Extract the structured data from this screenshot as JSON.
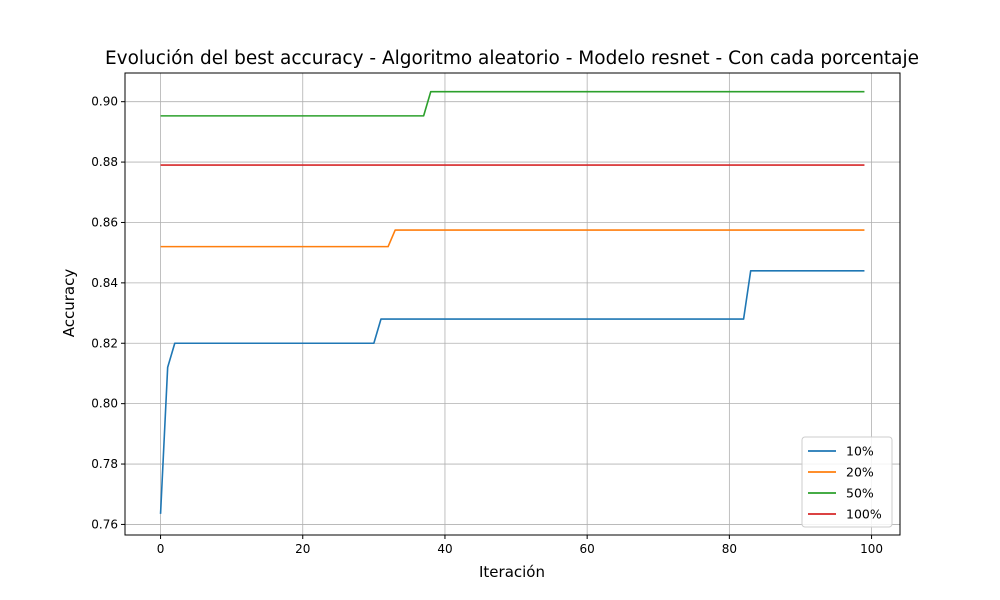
{
  "chart_data": {
    "type": "line",
    "title": "Evolución del best accuracy - Algoritmo aleatorio - Modelo resnet - Con cada porcentaje",
    "xlabel": "Iteración",
    "ylabel": "Accuracy",
    "xlim": [
      -5,
      104
    ],
    "ylim": [
      0.7565,
      0.9095
    ],
    "xticks": [
      0,
      20,
      40,
      60,
      80,
      100
    ],
    "yticks": [
      0.76,
      0.78,
      0.8,
      0.82,
      0.84,
      0.86,
      0.88,
      0.9
    ],
    "ytick_labels": [
      "0.76",
      "0.78",
      "0.80",
      "0.82",
      "0.84",
      "0.86",
      "0.88",
      "0.90"
    ],
    "grid": true,
    "legend_position": "lower-right",
    "series": [
      {
        "name": "10%",
        "color": "#1f77b4",
        "points": [
          [
            0,
            0.7635
          ],
          [
            1,
            0.812
          ],
          [
            2,
            0.82
          ],
          [
            30,
            0.82
          ],
          [
            31,
            0.828
          ],
          [
            82,
            0.828
          ],
          [
            83,
            0.844
          ],
          [
            99,
            0.844
          ]
        ]
      },
      {
        "name": "20%",
        "color": "#ff7f0e",
        "points": [
          [
            0,
            0.852
          ],
          [
            32,
            0.852
          ],
          [
            33,
            0.8575
          ],
          [
            99,
            0.8575
          ]
        ]
      },
      {
        "name": "50%",
        "color": "#2ca02c",
        "points": [
          [
            0,
            0.8953
          ],
          [
            37,
            0.8953
          ],
          [
            38,
            0.9033
          ],
          [
            99,
            0.9033
          ]
        ]
      },
      {
        "name": "100%",
        "color": "#d62728",
        "points": [
          [
            0,
            0.879
          ],
          [
            99,
            0.879
          ]
        ]
      }
    ]
  }
}
